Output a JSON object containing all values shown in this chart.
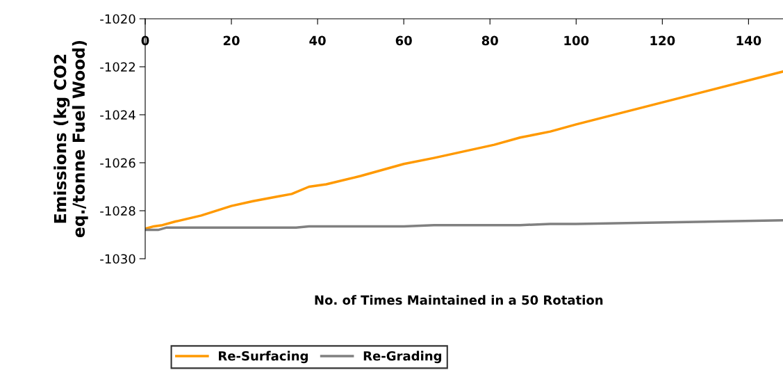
{
  "chart_data": {
    "type": "line",
    "xlabel": "No. of Times Maintained in a 50 Rotation",
    "ylabel": "Emissions (kg CO2\neq./tonne Fuel Wood)",
    "xlim": [
      0,
      148
    ],
    "xticks": [
      0,
      20,
      40,
      60,
      80,
      100,
      120,
      140
    ],
    "ylim": [
      -1030,
      -1020
    ],
    "yticks": [
      -1030,
      -1028,
      -1026,
      -1024,
      -1022,
      -1020
    ],
    "grid": false,
    "legend": "bottom",
    "marker": "none",
    "line_style": "solid",
    "series": [
      {
        "name": "Re-Surfacing",
        "color": "#ff9900",
        "x": [
          0,
          2,
          4,
          7,
          13,
          20,
          25,
          31,
          34,
          38,
          42,
          50,
          60,
          67,
          81,
          87,
          94,
          100,
          148
        ],
        "values": [
          -1028.75,
          -1028.65,
          -1028.6,
          -1028.45,
          -1028.2,
          -1027.8,
          -1027.6,
          -1027.4,
          -1027.3,
          -1027.0,
          -1026.9,
          -1026.55,
          -1026.05,
          -1025.8,
          -1025.25,
          -1024.95,
          -1024.7,
          -1024.4,
          -1022.2
        ]
      },
      {
        "name": "Re-Grading",
        "color": "#808080",
        "x": [
          0,
          3,
          5,
          35,
          38,
          60,
          67,
          87,
          94,
          100,
          148
        ],
        "values": [
          -1028.8,
          -1028.8,
          -1028.7,
          -1028.7,
          -1028.65,
          -1028.65,
          -1028.6,
          -1028.6,
          -1028.55,
          -1028.55,
          -1028.4
        ]
      }
    ]
  }
}
